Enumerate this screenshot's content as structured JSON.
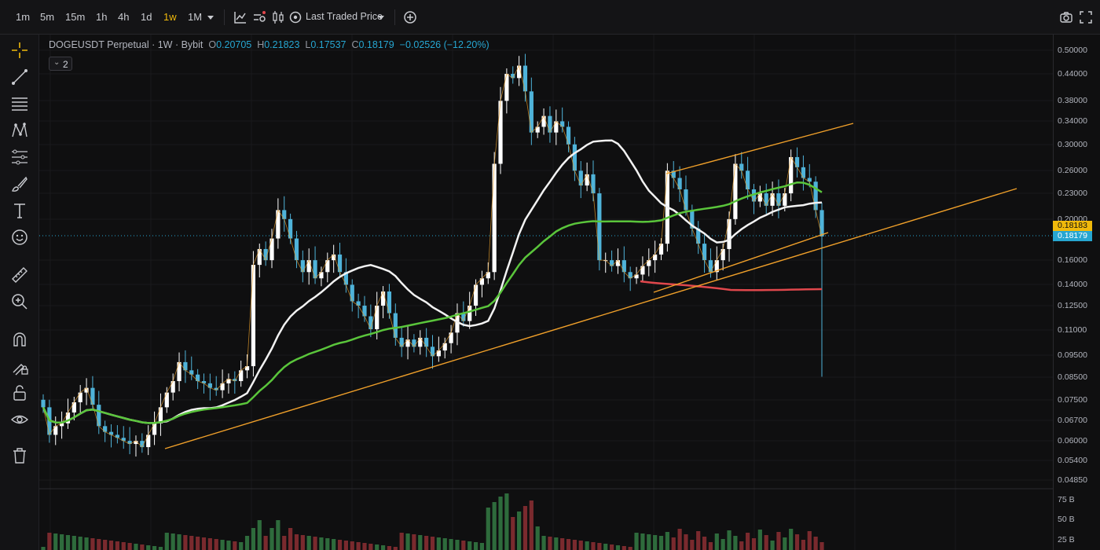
{
  "toolbar": {
    "intervals": [
      {
        "label": "1m",
        "active": false
      },
      {
        "label": "5m",
        "active": false
      },
      {
        "label": "15m",
        "active": false
      },
      {
        "label": "1h",
        "active": false
      },
      {
        "label": "4h",
        "active": false
      },
      {
        "label": "1d",
        "active": false
      },
      {
        "label": "1w",
        "active": true
      },
      {
        "label": "1M",
        "active": false
      }
    ],
    "price_source": "Last Traded Price",
    "accent_color": "#f0b90b"
  },
  "legend": {
    "symbol": "DOGEUSDT Perpetual",
    "interval": "1W",
    "exchange": "Bybit",
    "open_key": "O",
    "open": "0.20705",
    "high_key": "H",
    "high": "0.21823",
    "low_key": "L",
    "low": "0.17537",
    "close_key": "C",
    "close": "0.18179",
    "change": "−0.02526 (−12.20%)",
    "indicator_count": "2"
  },
  "price_axis": {
    "ticks": [
      "0.50000",
      "0.44000",
      "0.38000",
      "0.34000",
      "0.30000",
      "0.26000",
      "0.23000",
      "0.20000",
      "0.16000",
      "0.14000",
      "0.12500",
      "0.11000",
      "0.09500",
      "0.08500",
      "0.07500",
      "0.06700",
      "0.06000",
      "0.05400",
      "0.04850"
    ],
    "labels": [
      {
        "text": "0.18183",
        "bg": "#f0b90b",
        "fg": "#111111"
      },
      {
        "text": "0.18179",
        "bg": "#26a6d1",
        "fg": "#ffffff"
      }
    ]
  },
  "volume_axis": {
    "ticks": [
      "75 B",
      "50 B",
      "25 B"
    ]
  },
  "colors": {
    "up": "#ffffff",
    "down": "#4fb3d9",
    "ma_white": "#f2f2f2",
    "ma_green": "#5ac53b",
    "ma_red": "#e0474c",
    "trendline": "#f0a02a",
    "vol_up": "#2e6b3c",
    "vol_down": "#7a2a2e"
  }
}
